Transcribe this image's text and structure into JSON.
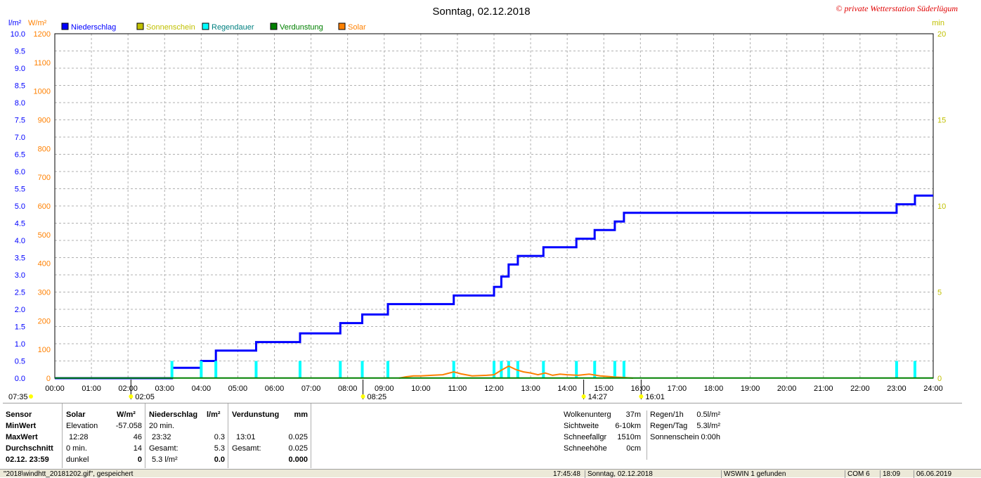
{
  "header": {
    "title": "Sonntag, 02.12.2018",
    "copyright": "© private Wetterstation Süderlügum"
  },
  "legend": [
    {
      "label": "Niederschlag",
      "color": "#0000ff",
      "label_color": "#0000ff"
    },
    {
      "label": "Sonnenschein",
      "color": "#c0c000",
      "label_color": "#c0c000"
    },
    {
      "label": "Regendauer",
      "color": "#00ffff",
      "label_color": "#008080"
    },
    {
      "label": "Verdunstung",
      "color": "#008000",
      "label_color": "#008000"
    },
    {
      "label": "Solar",
      "color": "#ff8000",
      "label_color": "#ff8000"
    }
  ],
  "chart_data": {
    "type": "line",
    "x_range": [
      "00:00",
      "24:00"
    ],
    "x_ticks": [
      "00:00",
      "01:00",
      "02:00",
      "03:00",
      "04:00",
      "05:00",
      "06:00",
      "07:00",
      "08:00",
      "09:00",
      "10:00",
      "11:00",
      "12:00",
      "13:00",
      "14:00",
      "15:00",
      "16:00",
      "17:00",
      "18:00",
      "19:00",
      "20:00",
      "21:00",
      "22:00",
      "23:00",
      "24:00"
    ],
    "axes": {
      "left1": {
        "unit": "l/m²",
        "range": [
          0,
          10
        ],
        "ticks": [
          "0.0",
          "0.5",
          "1.0",
          "1.5",
          "2.0",
          "2.5",
          "3.0",
          "3.5",
          "4.0",
          "4.5",
          "5.0",
          "5.5",
          "6.0",
          "6.5",
          "7.0",
          "7.5",
          "8.0",
          "8.5",
          "9.0",
          "9.5",
          "10.0"
        ],
        "color": "#0000ff"
      },
      "left2": {
        "unit": "W/m²",
        "range": [
          0,
          1200
        ],
        "ticks": [
          "0",
          "100",
          "200",
          "300",
          "400",
          "500",
          "600",
          "700",
          "800",
          "900",
          "1000",
          "1100",
          "1200"
        ],
        "color": "#ff8000"
      },
      "right": {
        "unit": "min",
        "range": [
          0,
          20
        ],
        "ticks": [
          "0",
          "5",
          "10",
          "15",
          "20"
        ],
        "color": "#c0c000"
      }
    },
    "grid": true,
    "series": [
      {
        "name": "Niederschlag",
        "axis": "left1",
        "color": "#0000ff",
        "points": [
          [
            0,
            0
          ],
          [
            3.2,
            0
          ],
          [
            3.2,
            0.3
          ],
          [
            4.0,
            0.3
          ],
          [
            4.0,
            0.5
          ],
          [
            4.4,
            0.5
          ],
          [
            4.4,
            0.8
          ],
          [
            5.5,
            0.8
          ],
          [
            5.5,
            1.05
          ],
          [
            6.7,
            1.05
          ],
          [
            6.7,
            1.3
          ],
          [
            7.8,
            1.3
          ],
          [
            7.8,
            1.6
          ],
          [
            8.4,
            1.6
          ],
          [
            8.4,
            1.85
          ],
          [
            9.1,
            1.85
          ],
          [
            9.1,
            2.15
          ],
          [
            10.9,
            2.15
          ],
          [
            10.9,
            2.4
          ],
          [
            12.0,
            2.4
          ],
          [
            12.0,
            2.65
          ],
          [
            12.2,
            2.65
          ],
          [
            12.2,
            2.95
          ],
          [
            12.4,
            2.95
          ],
          [
            12.4,
            3.3
          ],
          [
            12.65,
            3.3
          ],
          [
            12.65,
            3.55
          ],
          [
            13.35,
            3.55
          ],
          [
            13.35,
            3.8
          ],
          [
            14.25,
            3.8
          ],
          [
            14.25,
            4.05
          ],
          [
            14.75,
            4.05
          ],
          [
            14.75,
            4.3
          ],
          [
            15.3,
            4.3
          ],
          [
            15.3,
            4.55
          ],
          [
            15.55,
            4.55
          ],
          [
            15.55,
            4.8
          ],
          [
            23.0,
            4.8
          ],
          [
            23.0,
            5.05
          ],
          [
            23.5,
            5.05
          ],
          [
            23.5,
            5.3
          ],
          [
            24,
            5.3
          ]
        ]
      },
      {
        "name": "Regendauer",
        "axis": "right",
        "color": "#00ffff",
        "bars": [
          [
            3.2,
            1
          ],
          [
            4.0,
            1
          ],
          [
            4.4,
            1
          ],
          [
            5.5,
            1
          ],
          [
            6.7,
            1
          ],
          [
            7.8,
            1
          ],
          [
            8.4,
            1
          ],
          [
            9.1,
            1
          ],
          [
            10.9,
            1
          ],
          [
            12.0,
            1
          ],
          [
            12.2,
            1
          ],
          [
            12.4,
            1
          ],
          [
            12.65,
            1
          ],
          [
            13.35,
            1
          ],
          [
            14.25,
            1
          ],
          [
            14.75,
            1
          ],
          [
            15.3,
            1
          ],
          [
            15.55,
            1
          ],
          [
            23.0,
            1
          ],
          [
            23.5,
            1
          ]
        ]
      },
      {
        "name": "Solar",
        "axis": "left2",
        "color": "#ff8000",
        "points": [
          [
            9.4,
            0
          ],
          [
            9.6,
            5
          ],
          [
            9.8,
            8
          ],
          [
            10.0,
            8
          ],
          [
            10.3,
            10
          ],
          [
            10.6,
            12
          ],
          [
            10.9,
            22
          ],
          [
            11.1,
            15
          ],
          [
            11.4,
            8
          ],
          [
            11.8,
            10
          ],
          [
            12.0,
            12
          ],
          [
            12.2,
            28
          ],
          [
            12.4,
            42
          ],
          [
            12.6,
            30
          ],
          [
            12.8,
            22
          ],
          [
            13.0,
            18
          ],
          [
            13.2,
            12
          ],
          [
            13.4,
            18
          ],
          [
            13.6,
            10
          ],
          [
            13.8,
            14
          ],
          [
            14.0,
            12
          ],
          [
            14.3,
            10
          ],
          [
            14.6,
            14
          ],
          [
            14.9,
            8
          ],
          [
            15.1,
            6
          ],
          [
            15.3,
            4
          ],
          [
            15.6,
            2
          ],
          [
            15.8,
            0
          ]
        ]
      },
      {
        "name": "Verdunstung",
        "axis": "left1",
        "color": "#008000",
        "points": [
          [
            0,
            0.005
          ],
          [
            24,
            0.005
          ]
        ]
      }
    ],
    "markers": [
      {
        "label": "07:35",
        "side": "left",
        "color": "#ffff00"
      },
      {
        "label": "02:05",
        "x": 2.08,
        "color": "#ffff00"
      },
      {
        "label": "08:25",
        "x": 8.42,
        "color": "#ffff00"
      },
      {
        "label": "14:27",
        "x": 14.45,
        "color": "#ffff00"
      },
      {
        "label": "16:01",
        "x": 16.02,
        "color": "#ffff00"
      }
    ]
  },
  "stats": {
    "sensor": {
      "header": "Sensor",
      "min": "MinWert",
      "max": "MaxWert",
      "avg": "Durchschnitt",
      "date": "02.12. 23:59"
    },
    "solar": {
      "header": "Solar",
      "unit": "W/m²",
      "r1a": "Elevation",
      "r1b": "-57.058",
      "r2a": "12:28",
      "r2b": "46",
      "r3a": "0 min.",
      "r3b": "14",
      "r4a": "dunkel",
      "r4b": "0"
    },
    "niederschlag": {
      "header": "Niederschlag",
      "unit": "l/m²",
      "r1a": "20 min.",
      "r1b": "",
      "r2a": "23:32",
      "r2b": "0.3",
      "r3a": "Gesamt:",
      "r3b": "5.3",
      "r4a": "5.3 l/m²",
      "r4b": "0.0"
    },
    "verdunstung": {
      "header": "Verdunstung",
      "unit": "mm",
      "r2a": "13:01",
      "r2b": "0.025",
      "r3a": "Gesamt:",
      "r3b": "0.025",
      "r4b": "0.000"
    },
    "misc": [
      {
        "label": "Wolkenunterg",
        "value": "37m"
      },
      {
        "label": "Sichtweite",
        "value": "6-10km"
      },
      {
        "label": "Schneefallgr",
        "value": "1510m"
      },
      {
        "label": "Schneehöhe",
        "value": "0cm"
      }
    ],
    "regen": [
      {
        "label": "Regen/1h",
        "value": "0.5l/m²"
      },
      {
        "label": "Regen/Tag",
        "value": "5.3l/m²"
      },
      {
        "label": "Sonnenschein",
        "value": "0:00h"
      }
    ]
  },
  "statusbar": {
    "file": "\"2018\\windhtt_20181202.gif\", gespeichert",
    "time": "17:45:48",
    "date": "Sonntag, 02.12.2018",
    "device": "WSWIN 1 gefunden",
    "port": "COM 6",
    "clock": "18:09",
    "today": "06.06.2019"
  }
}
